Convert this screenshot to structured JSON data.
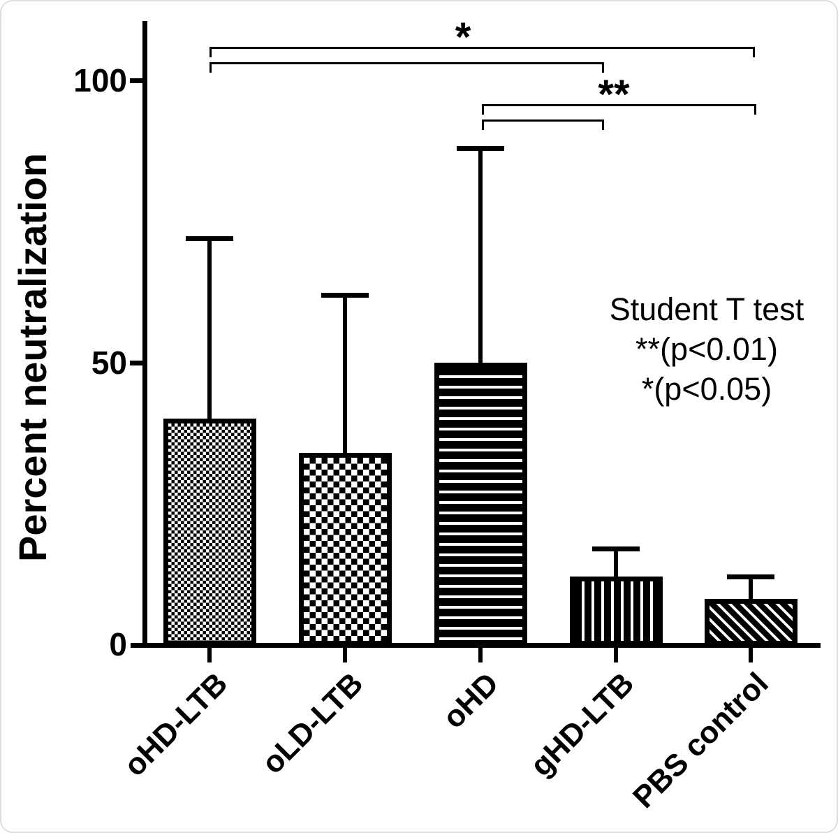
{
  "figure": {
    "background": "#ffffff",
    "foreground": "#000000"
  },
  "chart_data": {
    "type": "bar",
    "title": "",
    "ylabel": "Percent neutralization",
    "xlabel": "",
    "categories": [
      "oHD-LTB",
      "oLD-LTB",
      "oHD",
      "gHD-LTB",
      "PBS control"
    ],
    "values": [
      40,
      34,
      50,
      12,
      8
    ],
    "error_upper": [
      72,
      62,
      88,
      17,
      12
    ],
    "yticks": [
      0,
      50,
      100
    ],
    "ylim": [
      0,
      112
    ],
    "grid": false,
    "legend": "none",
    "bar_color": "#000000",
    "bar_fill_patterns": [
      "fine-checkerboard",
      "coarse-checkerboard",
      "horizontal-stripes",
      "vertical-stripes",
      "diagonal-stripes"
    ],
    "significance_brackets": [
      {
        "from": "oHD-LTB",
        "to": "PBS control",
        "label": "*"
      },
      {
        "from": "oHD-LTB",
        "to": "gHD-LTB",
        "label": ""
      },
      {
        "from": "oHD",
        "to": "PBS control",
        "label": "**"
      },
      {
        "from": "oHD",
        "to": "gHD-LTB",
        "label": ""
      }
    ],
    "annotations": {
      "lines": [
        "Student T test",
        "**(p<0.01)",
        "*(p<0.05)"
      ]
    }
  }
}
